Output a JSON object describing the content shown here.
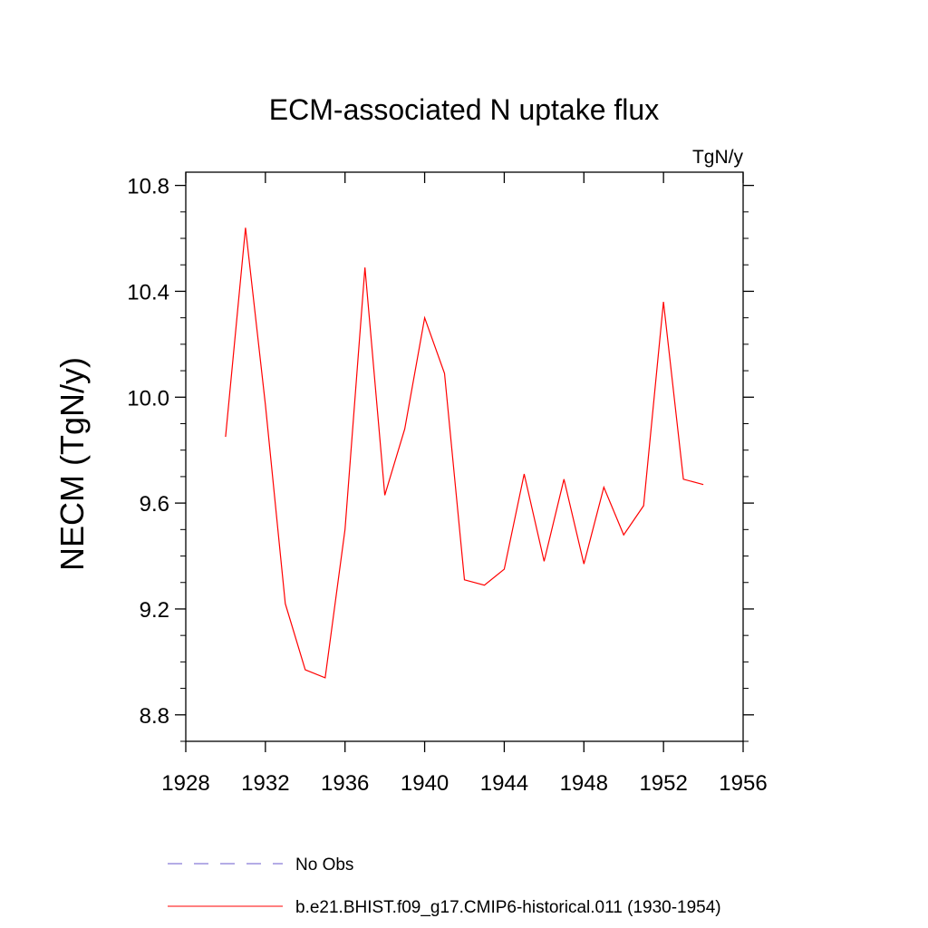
{
  "chart_data": {
    "type": "line",
    "title": "ECM-associated N uptake flux",
    "units": "TgN/y",
    "xlabel": "",
    "ylabel": "NECM  (TgN/y)",
    "xlim": [
      1928,
      1956
    ],
    "ylim": [
      8.7,
      10.85
    ],
    "x_ticks": [
      1928,
      1932,
      1936,
      1940,
      1944,
      1948,
      1952,
      1956
    ],
    "x_tick_labels": [
      "1928",
      "1932",
      "1936",
      "1940",
      "1944",
      "1948",
      "1952",
      "1956"
    ],
    "y_ticks": [
      8.8,
      9.2,
      9.6,
      10.0,
      10.4,
      10.8
    ],
    "y_tick_labels": [
      "8.8",
      "9.2",
      "9.6",
      "10.0",
      "10.4",
      "10.8"
    ],
    "grid": false,
    "legend_position": "bottom",
    "series": [
      {
        "name": "b.e21.BHIST.f09_g17.CMIP6-historical.011 (1930-1954)",
        "color": "#ff0000",
        "style": "solid",
        "x": [
          1930,
          1931,
          1932,
          1933,
          1934,
          1935,
          1936,
          1937,
          1938,
          1939,
          1940,
          1941,
          1942,
          1943,
          1944,
          1945,
          1946,
          1947,
          1948,
          1949,
          1950,
          1951,
          1952,
          1953,
          1954
        ],
        "y": [
          9.85,
          10.64,
          9.97,
          9.22,
          8.97,
          8.94,
          9.5,
          10.49,
          9.63,
          9.88,
          10.3,
          10.09,
          9.31,
          9.29,
          9.35,
          9.71,
          9.38,
          9.69,
          9.37,
          9.66,
          9.48,
          9.59,
          10.36,
          9.69,
          9.67
        ]
      }
    ],
    "legend": [
      {
        "label": "No Obs",
        "color": "#6a5acd",
        "style": "dashed"
      },
      {
        "label": "b.e21.BHIST.f09_g17.CMIP6-historical.011 (1930-1954)",
        "color": "#ff0000",
        "style": "solid"
      }
    ]
  }
}
